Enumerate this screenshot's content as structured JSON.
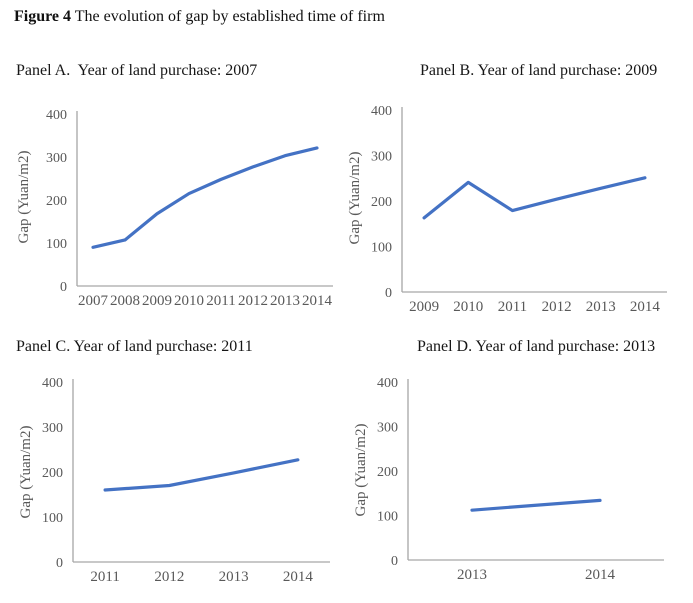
{
  "figure": {
    "caption_label": "Figure 4",
    "caption_text": " The evolution of gap by established time of firm"
  },
  "colors": {
    "series_line": "#4472C4",
    "axis_line": "#A6A6A6",
    "tick_label": "#595959"
  },
  "chart_data": [
    {
      "type": "line",
      "panel": "A",
      "title": "Panel A.  Year of land purchase: 2007",
      "x": [
        "2007",
        "2008",
        "2009",
        "2010",
        "2011",
        "2012",
        "2013",
        "2014"
      ],
      "values": [
        90,
        107,
        168,
        215,
        248,
        277,
        303,
        321
      ],
      "xlabel": "",
      "ylabel": "Gap (Yuan/m2)",
      "ylim": [
        0,
        400
      ],
      "yticks": [
        0,
        100,
        200,
        300,
        400
      ],
      "grid": false,
      "legend": "none"
    },
    {
      "type": "line",
      "panel": "B",
      "title": "Panel B. Year of land purchase: 2009",
      "x": [
        "2009",
        "2010",
        "2011",
        "2012",
        "2013",
        "2014"
      ],
      "values": [
        163,
        241,
        179,
        204,
        228,
        251
      ],
      "xlabel": "",
      "ylabel": "Gap (Yuan/m2)",
      "ylim": [
        0,
        400
      ],
      "yticks": [
        0,
        100,
        200,
        300,
        400
      ],
      "grid": false,
      "legend": "none"
    },
    {
      "type": "line",
      "panel": "C",
      "title": "Panel C. Year of land purchase: 2011",
      "x": [
        "2011",
        "2012",
        "2013",
        "2014"
      ],
      "values": [
        160,
        170,
        198,
        227
      ],
      "xlabel": "",
      "ylabel": "Gap (Yuan/m2)",
      "ylim": [
        0,
        400
      ],
      "yticks": [
        0,
        100,
        200,
        300,
        400
      ],
      "grid": false,
      "legend": "none"
    },
    {
      "type": "line",
      "panel": "D",
      "title": "Panel D. Year of land purchase: 2013",
      "x": [
        "2013",
        "2014"
      ],
      "values": [
        112,
        134
      ],
      "xlabel": "",
      "ylabel": "Gap (Yuan/m2)",
      "ylim": [
        0,
        400
      ],
      "yticks": [
        0,
        100,
        200,
        300,
        400
      ],
      "grid": false,
      "legend": "none"
    }
  ]
}
